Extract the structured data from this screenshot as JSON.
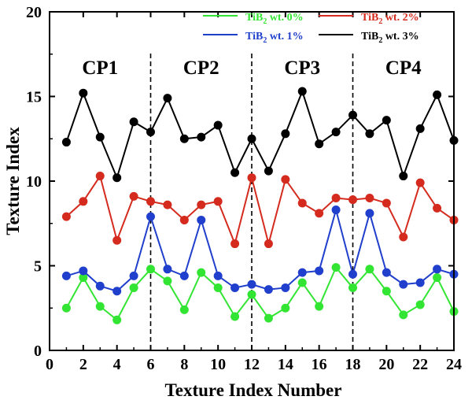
{
  "chart_data": {
    "type": "line",
    "xlabel": "Texture Index Number",
    "ylabel": "Texture Index",
    "xlim": [
      0,
      24
    ],
    "ylim": [
      0,
      20
    ],
    "xticks": [
      0,
      2,
      4,
      6,
      8,
      10,
      12,
      14,
      16,
      18,
      20,
      22,
      24
    ],
    "yticks": [
      0,
      5,
      10,
      15,
      20
    ],
    "x": [
      1,
      2,
      3,
      4,
      5,
      6,
      7,
      8,
      9,
      10,
      11,
      12,
      13,
      14,
      15,
      16,
      17,
      18,
      19,
      20,
      21,
      22,
      23,
      24
    ],
    "dividers": [
      6,
      12,
      18
    ],
    "regions": [
      {
        "label": "CP1",
        "center": 3
      },
      {
        "label": "CP2",
        "center": 9
      },
      {
        "label": "CP3",
        "center": 15
      },
      {
        "label": "CP4",
        "center": 21
      }
    ],
    "legend_position": "top-right",
    "series": [
      {
        "name": "TiB2 wt. 0%",
        "prefix": "TiB",
        "sub": "2",
        "suffix": " wt. 0%",
        "color": "#33e533",
        "values": [
          2.5,
          4.3,
          2.6,
          1.8,
          3.7,
          4.8,
          4.1,
          2.4,
          4.6,
          3.7,
          2.0,
          3.3,
          1.9,
          2.5,
          4.0,
          2.6,
          4.9,
          3.7,
          4.8,
          3.5,
          2.1,
          2.7,
          4.3,
          2.3
        ]
      },
      {
        "name": "TiB2 wt. 1%",
        "prefix": "TiB",
        "sub": "2",
        "suffix": " wt. 1%",
        "color": "#1f3fcc",
        "values": [
          4.4,
          4.7,
          3.8,
          3.5,
          4.4,
          7.9,
          4.8,
          4.4,
          7.7,
          4.4,
          3.7,
          3.9,
          3.6,
          3.7,
          4.6,
          4.7,
          8.3,
          4.5,
          8.1,
          4.6,
          3.9,
          4.0,
          4.8,
          4.5
        ]
      },
      {
        "name": "TiB2 wt. 2%",
        "prefix": "TiB",
        "sub": "2",
        "suffix": " wt. 2%",
        "color": "#d42b1e",
        "values": [
          7.9,
          8.8,
          10.3,
          6.5,
          9.1,
          8.8,
          8.6,
          7.7,
          8.6,
          8.8,
          6.3,
          10.2,
          6.3,
          10.1,
          8.7,
          8.1,
          9.0,
          8.9,
          9.0,
          8.7,
          6.7,
          9.9,
          8.4,
          7.7
        ]
      },
      {
        "name": "TiB2 wt. 3%",
        "prefix": "TiB",
        "sub": "2",
        "suffix": " wt. 3%",
        "color": "#000000",
        "values": [
          12.3,
          15.2,
          12.6,
          10.2,
          13.5,
          12.9,
          14.9,
          12.5,
          12.6,
          13.3,
          10.5,
          12.5,
          10.6,
          12.8,
          15.3,
          12.2,
          12.9,
          13.9,
          12.8,
          13.6,
          10.3,
          13.1,
          15.1,
          12.4
        ]
      }
    ]
  }
}
